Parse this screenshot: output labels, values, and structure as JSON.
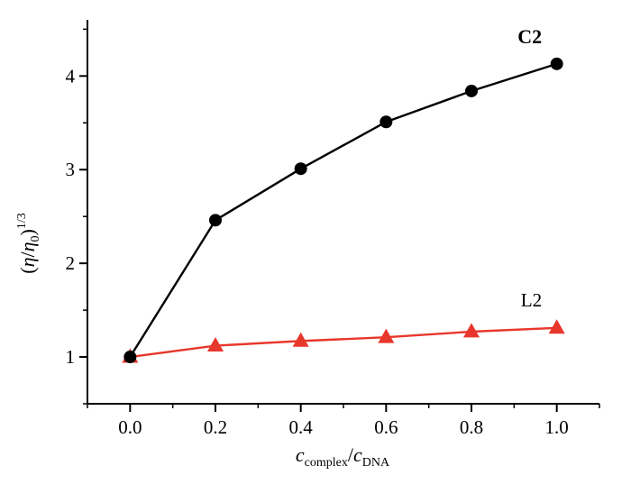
{
  "chart_data": {
    "type": "line",
    "x": [
      0.0,
      0.2,
      0.4,
      0.6,
      0.8,
      1.0
    ],
    "series": [
      {
        "name": "C2",
        "values": [
          1.0,
          2.46,
          3.01,
          3.51,
          3.84,
          4.13
        ],
        "color": "#000000",
        "marker": "circle"
      },
      {
        "name": "L2",
        "values": [
          1.0,
          1.12,
          1.17,
          1.21,
          1.27,
          1.31
        ],
        "color": "#e8372c",
        "marker": "triangle"
      }
    ],
    "xticks": [
      "0.0",
      "0.2",
      "0.4",
      "0.6",
      "0.8",
      "1.0"
    ],
    "yticks": [
      "1",
      "2",
      "3",
      "4"
    ],
    "xlim": [
      -0.1,
      1.1
    ],
    "ylim": [
      0.5,
      4.6
    ],
    "xlabel": {
      "c1": "c",
      "sub1": "complex",
      "slash": "/",
      "c2": "c",
      "sub2": "DNA"
    },
    "ylabel": {
      "open": "(",
      "eta": "η",
      "slash": "/",
      "eta0": "η",
      "zero": "0",
      "close": ")",
      "power": "1/3"
    },
    "grid": false,
    "legend": "inline labels at series ends"
  }
}
